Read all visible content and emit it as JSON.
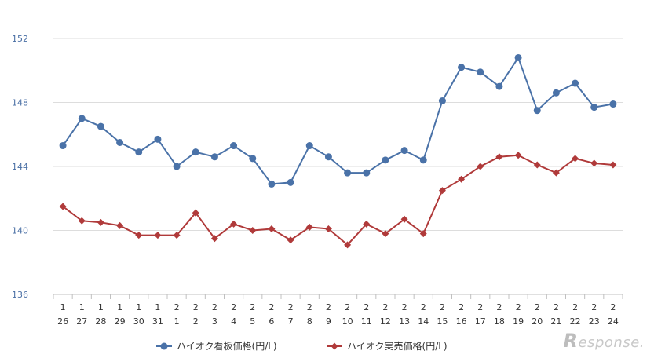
{
  "chart_data": {
    "type": "line",
    "x_months": [
      "1",
      "1",
      "1",
      "1",
      "1",
      "1",
      "2",
      "2",
      "2",
      "2",
      "2",
      "2",
      "2",
      "2",
      "2",
      "2",
      "2",
      "2",
      "2",
      "2",
      "2",
      "2",
      "2",
      "2",
      "2",
      "2",
      "2",
      "2",
      "2",
      "2"
    ],
    "x_days": [
      "26",
      "27",
      "28",
      "29",
      "30",
      "31",
      "1",
      "2",
      "3",
      "4",
      "5",
      "6",
      "7",
      "8",
      "9",
      "10",
      "11",
      "12",
      "13",
      "14",
      "15",
      "16",
      "17",
      "18",
      "19",
      "20",
      "21",
      "22",
      "23",
      "24"
    ],
    "ylim": [
      136,
      152
    ],
    "yticks": [
      136,
      140,
      144,
      148,
      152
    ],
    "grid": true,
    "legend_position": "bottom",
    "series": [
      {
        "name": "ハイオク看板価格(円/L)",
        "color": "#4a72a8",
        "marker": "circle",
        "values": [
          145.3,
          147.0,
          146.5,
          145.5,
          144.9,
          145.7,
          144.0,
          144.9,
          144.6,
          145.3,
          144.5,
          142.9,
          143.0,
          145.3,
          144.6,
          143.6,
          143.6,
          144.4,
          145.0,
          144.4,
          148.1,
          150.2,
          149.9,
          149.0,
          150.8,
          147.5,
          148.6,
          149.2,
          147.7,
          147.9
        ]
      },
      {
        "name": "ハイオク実売価格(円/L)",
        "color": "#b03a3a",
        "marker": "diamond",
        "values": [
          141.5,
          140.6,
          140.5,
          140.3,
          139.7,
          139.7,
          139.7,
          141.1,
          139.5,
          140.4,
          140.0,
          140.1,
          139.4,
          140.2,
          140.1,
          139.1,
          140.4,
          139.8,
          140.7,
          139.8,
          142.5,
          143.2,
          144.0,
          144.6,
          144.7,
          144.1,
          143.6,
          144.5,
          144.2,
          144.1
        ]
      }
    ]
  },
  "watermark": {
    "initial": "R",
    "text": "esponse."
  }
}
